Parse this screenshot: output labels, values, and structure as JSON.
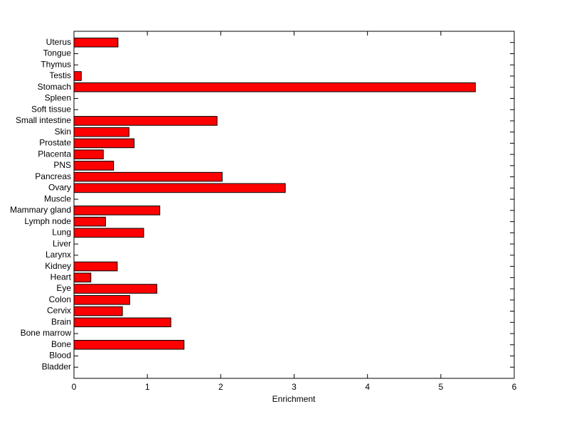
{
  "chart_data": {
    "type": "barh",
    "xlabel": "Enrichment",
    "categories": [
      "Uterus",
      "Tongue",
      "Thymus",
      "Testis",
      "Stomach",
      "Spleen",
      "Soft tissue",
      "Small intestine",
      "Skin",
      "Prostate",
      "Placenta",
      "PNS",
      "Pancreas",
      "Ovary",
      "Muscle",
      "Mammary gland",
      "Lymph node",
      "Lung",
      "Liver",
      "Larynx",
      "Kidney",
      "Heart",
      "Eye",
      "Colon",
      "Cervix",
      "Brain",
      "Bone marrow",
      "Bone",
      "Blood",
      "Bladder"
    ],
    "values": [
      0.6,
      0,
      0,
      0.1,
      5.47,
      0,
      0,
      1.95,
      0.75,
      0.82,
      0.4,
      0.54,
      2.02,
      2.88,
      0,
      1.17,
      0.43,
      0.95,
      0,
      0,
      0.59,
      0.23,
      1.13,
      0.76,
      0.66,
      1.32,
      0,
      1.5,
      0,
      0
    ],
    "color": "#ff0000",
    "xlim": [
      0,
      6
    ],
    "xticks": [
      0,
      1,
      2,
      3,
      4,
      5,
      6
    ]
  }
}
